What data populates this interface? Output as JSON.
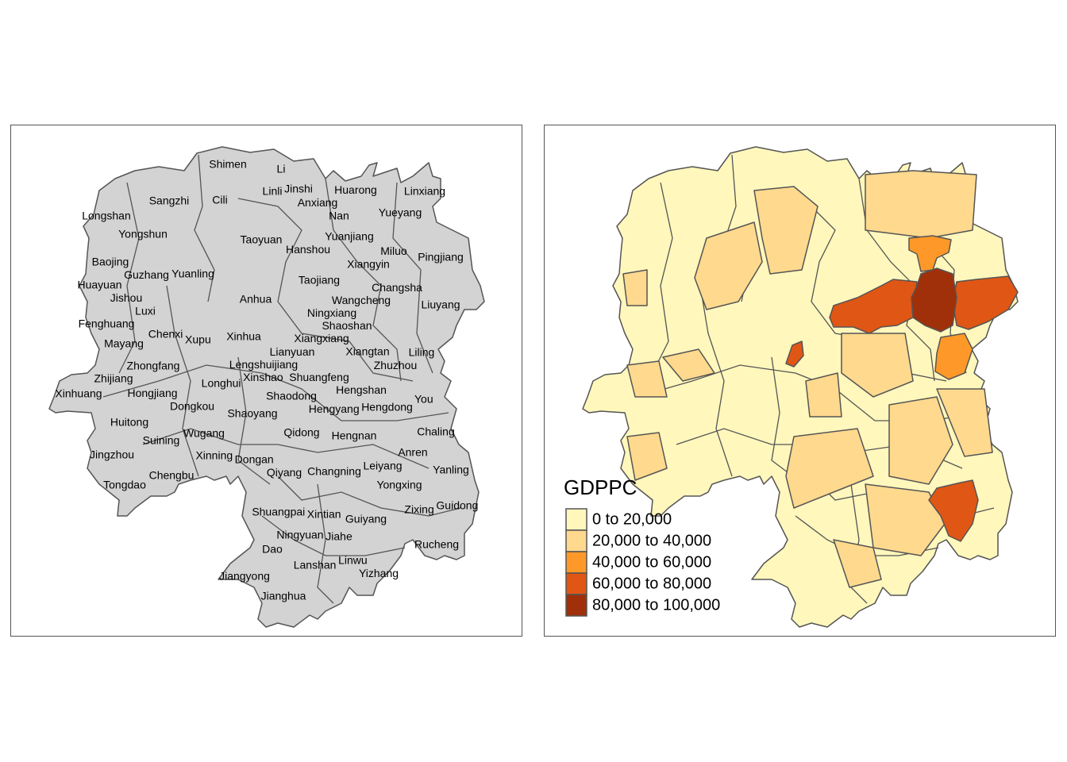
{
  "left_map": {
    "fill_color": "#D3D3D3",
    "border_color": "#555555",
    "labels": [
      "Shimen",
      "Li",
      "Linli",
      "Jinshi",
      "Anxiang",
      "Huarong",
      "Linxiang",
      "Sangzhi",
      "Cili",
      "Longshan",
      "Nan",
      "Yueyang",
      "Yongshun",
      "Taoyuan",
      "Yuanjiang",
      "Hanshou",
      "Miluo",
      "Pingjiang",
      "Xiangyin",
      "Baojing",
      "Guzhang",
      "Yuanling",
      "Huayuan",
      "Taojiang",
      "Jishou",
      "Anhua",
      "Wangcheng",
      "Changsha",
      "Liuyang",
      "Luxi",
      "Ningxiang",
      "Fenghuang",
      "Shaoshan",
      "Chenxi",
      "Xupu",
      "Xinhua",
      "Mayang",
      "Lianyuan",
      "Xiangxiang",
      "Lengshuijiang",
      "Xiangtan",
      "Zhuzhou",
      "Liling",
      "Zhongfang",
      "Xinshao",
      "Shuangfeng",
      "Zhijiang",
      "Longhui",
      "Hengshan",
      "Xinhuang",
      "Hongjiang",
      "Dongkou",
      "Shaodong",
      "You",
      "Shaoyang",
      "Hengyang",
      "Hengdong",
      "Huitong",
      "Qidong",
      "Hengnan",
      "Chaling",
      "Wugang",
      "Suining",
      "Jingzhou",
      "Xinning",
      "Dongan",
      "Anren",
      "Leiyang",
      "Qiyang",
      "Changning",
      "Yanling",
      "Tongdao",
      "Chengbu",
      "Yongxing",
      "Zixing",
      "Guidong",
      "Shuangpai",
      "Xintian",
      "Guiyang",
      "Ningyuan",
      "Jiahe",
      "Rucheng",
      "Dao",
      "Lanshan",
      "Linwu",
      "Yizhang",
      "Jiangyong",
      "Jianghua"
    ]
  },
  "right_map": {
    "legend": {
      "title": "GDPPC",
      "items": [
        {
          "label": "0 to 20,000",
          "color": "#FFF7BC"
        },
        {
          "label": "20,000 to 40,000",
          "color": "#FED98E"
        },
        {
          "label": "40,000 to 60,000",
          "color": "#FE9929"
        },
        {
          "label": "60,000 to 80,000",
          "color": "#E05614"
        },
        {
          "label": "80,000 to 100,000",
          "color": "#A0300A"
        }
      ]
    }
  }
}
